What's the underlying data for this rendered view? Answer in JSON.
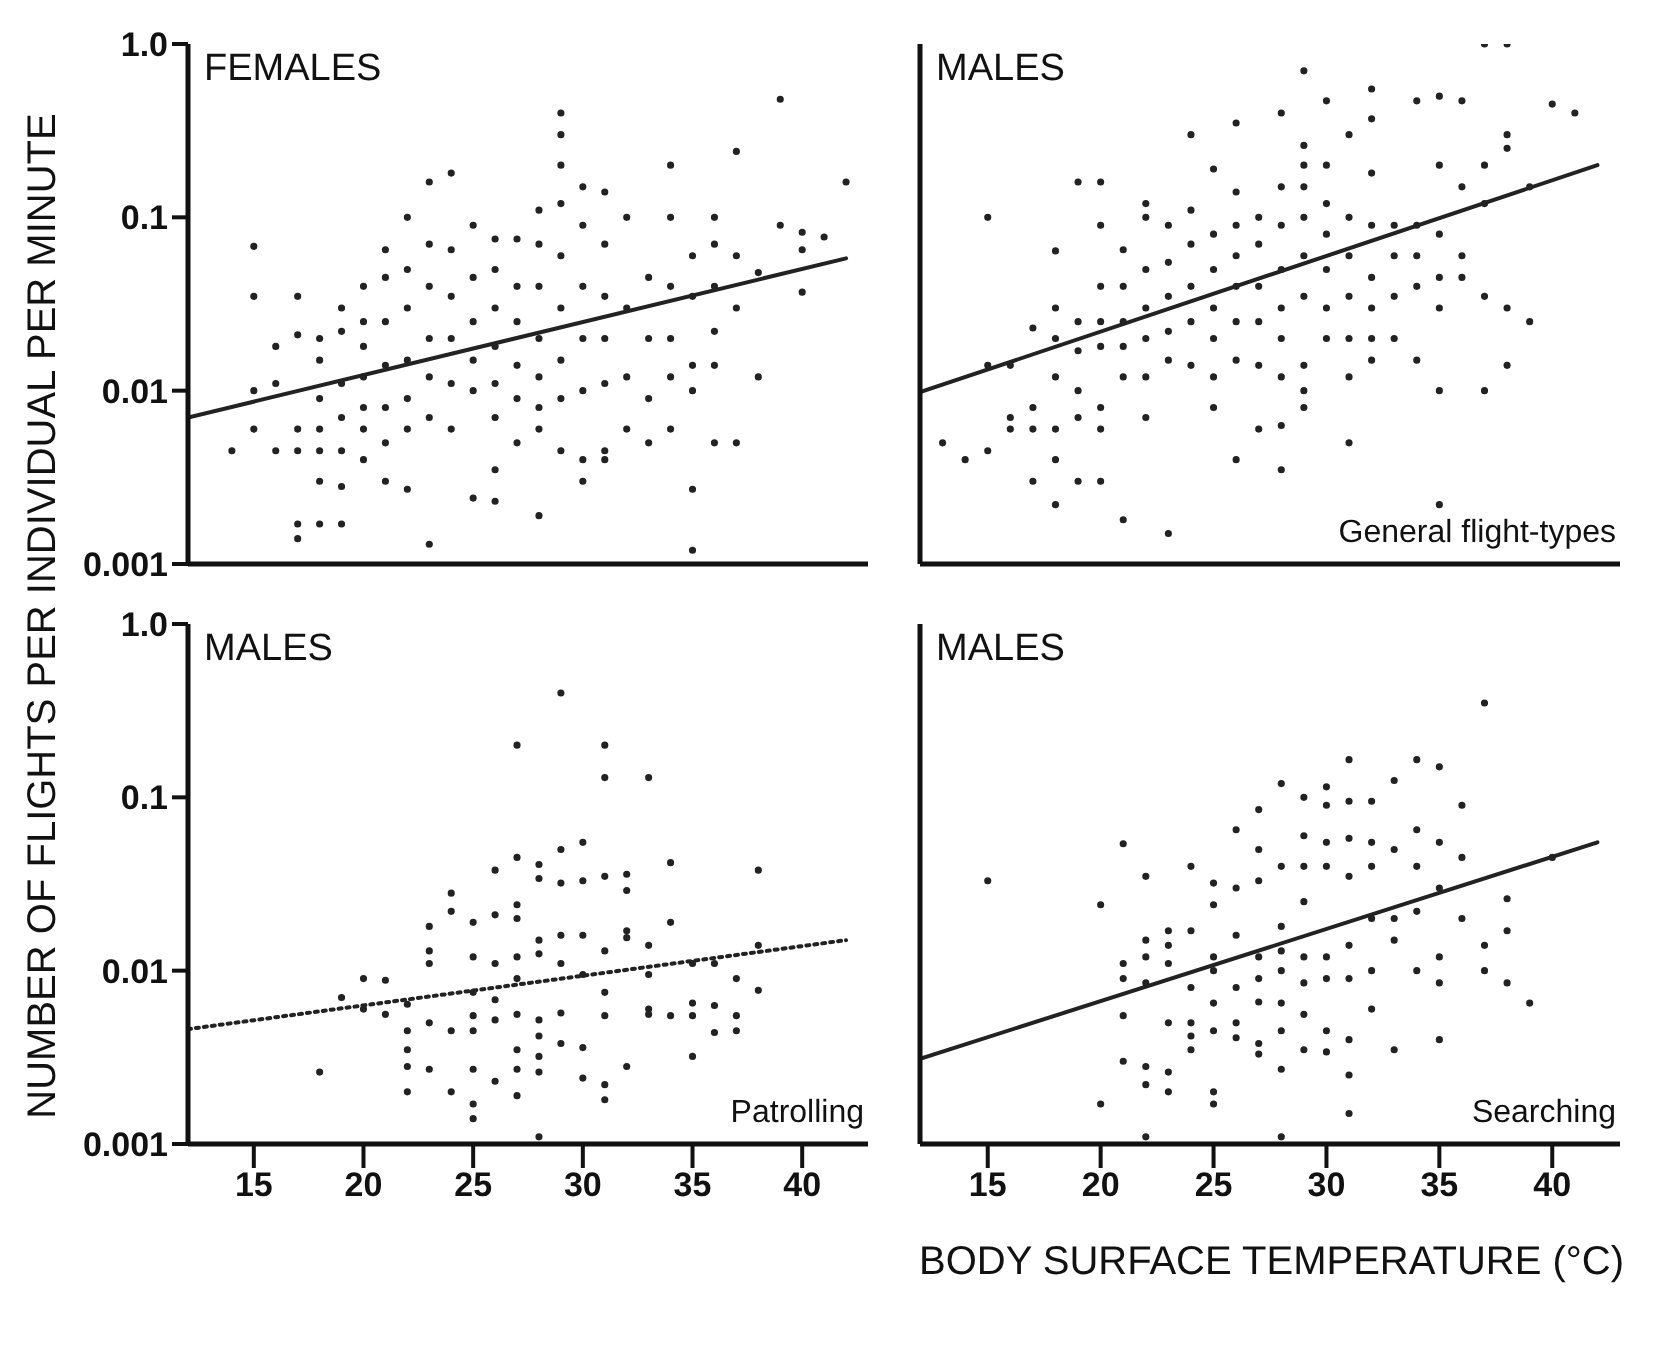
{
  "chart_data": [
    {
      "type": "scatter",
      "title": "FEMALES",
      "ylabel": "NUMBER OF FLIGHTS PER INDIVIDUAL PER MINUTE",
      "xlim": [
        12,
        43
      ],
      "xticks": [
        15,
        20,
        25,
        30,
        35,
        40
      ],
      "ylim": [
        0.001,
        1
      ],
      "yticks": [
        0.001,
        0.01,
        0.1,
        {
          "value": 1,
          "label": "1.0"
        }
      ],
      "log": "y",
      "tick_labels": "y",
      "series": [
        {
          "marker": "circle",
          "color": "#222222",
          "x": [
            14,
            15,
            15,
            15,
            15,
            16,
            16,
            16,
            17,
            17,
            17,
            17,
            17,
            17,
            18,
            18,
            18,
            18,
            18,
            18,
            18,
            19,
            19,
            19,
            19,
            19,
            19,
            19,
            20,
            20,
            20,
            20,
            20,
            20,
            20,
            21,
            21,
            21,
            21,
            21,
            21,
            21,
            22,
            22,
            22,
            22,
            22,
            22,
            22,
            23,
            23,
            23,
            23,
            23,
            23,
            23,
            24,
            24,
            24,
            24,
            24,
            24,
            25,
            25,
            25,
            25,
            25,
            25,
            26,
            26,
            26,
            26,
            26,
            26,
            26,
            26,
            27,
            27,
            27,
            27,
            27,
            27,
            28,
            28,
            28,
            28,
            28,
            28,
            28,
            28,
            29,
            29,
            29,
            29,
            29,
            29,
            29,
            29,
            29,
            30,
            30,
            30,
            30,
            30,
            30,
            30,
            31,
            31,
            31,
            31,
            31,
            31,
            31,
            32,
            32,
            32,
            32,
            33,
            33,
            33,
            33,
            34,
            34,
            34,
            34,
            34,
            34,
            35,
            35,
            35,
            35,
            35,
            35,
            36,
            36,
            36,
            36,
            36,
            36,
            37,
            37,
            37,
            37,
            38,
            38,
            39,
            39,
            40,
            40,
            40,
            41,
            42
          ],
          "values": [
            0.0045,
            0.068,
            0.035,
            0.01,
            0.006,
            0.018,
            0.011,
            0.0045,
            0.035,
            0.021,
            0.006,
            0.0045,
            0.0017,
            0.0014,
            0.02,
            0.015,
            0.009,
            0.006,
            0.0045,
            0.003,
            0.0017,
            0.03,
            0.022,
            0.011,
            0.007,
            0.0045,
            0.0028,
            0.0017,
            0.04,
            0.025,
            0.018,
            0.012,
            0.008,
            0.006,
            0.004,
            0.065,
            0.045,
            0.025,
            0.014,
            0.008,
            0.005,
            0.003,
            0.1,
            0.05,
            0.03,
            0.015,
            0.009,
            0.006,
            0.0027,
            0.16,
            0.07,
            0.04,
            0.02,
            0.012,
            0.007,
            0.0013,
            0.18,
            0.065,
            0.035,
            0.02,
            0.011,
            0.006,
            0.09,
            0.045,
            0.025,
            0.015,
            0.01,
            0.0024,
            0.075,
            0.05,
            0.03,
            0.018,
            0.011,
            0.007,
            0.0035,
            0.0023,
            0.075,
            0.04,
            0.025,
            0.014,
            0.009,
            0.005,
            0.11,
            0.07,
            0.04,
            0.02,
            0.012,
            0.008,
            0.006,
            0.0019,
            0.4,
            0.3,
            0.2,
            0.12,
            0.06,
            0.03,
            0.015,
            0.009,
            0.0045,
            0.15,
            0.09,
            0.04,
            0.02,
            0.01,
            0.004,
            0.003,
            0.14,
            0.07,
            0.035,
            0.02,
            0.011,
            0.0045,
            0.004,
            0.1,
            0.03,
            0.012,
            0.006,
            0.045,
            0.02,
            0.009,
            0.005,
            0.2,
            0.1,
            0.04,
            0.02,
            0.012,
            0.006,
            0.06,
            0.035,
            0.014,
            0.01,
            0.0027,
            0.0012,
            0.1,
            0.07,
            0.04,
            0.022,
            0.014,
            0.005,
            0.24,
            0.06,
            0.03,
            0.005,
            0.048,
            0.012,
            0.48,
            0.09,
            0.082,
            0.065,
            0.037,
            0.077,
            0.16
          ]
        },
        {
          "type": "line",
          "marker": "none",
          "color": "#222222",
          "line_style": "solid",
          "x": [
            12,
            42
          ],
          "values": [
            0.007,
            0.058
          ]
        }
      ]
    },
    {
      "type": "scatter",
      "title": "MALES",
      "subtitle": "General flight-types",
      "xlim": [
        12,
        43
      ],
      "xticks": [
        15,
        20,
        25,
        30,
        35,
        40
      ],
      "ylim": [
        0.001,
        1
      ],
      "yticks": [
        0.001,
        0.01,
        0.1,
        1
      ],
      "log": "y",
      "tick_labels": false,
      "series": [
        {
          "marker": "circle",
          "color": "#222222",
          "x": [
            13,
            14,
            15,
            15,
            15,
            16,
            16,
            16,
            17,
            17,
            17,
            17,
            18,
            18,
            18,
            18,
            18,
            18,
            18,
            19,
            19,
            19,
            19,
            19,
            19,
            20,
            20,
            20,
            20,
            20,
            20,
            20,
            20,
            21,
            21,
            21,
            21,
            21,
            21,
            22,
            22,
            22,
            22,
            22,
            22,
            22,
            23,
            23,
            23,
            23,
            23,
            23,
            24,
            24,
            24,
            24,
            24,
            24,
            25,
            25,
            25,
            25,
            25,
            25,
            25,
            26,
            26,
            26,
            26,
            26,
            26,
            26,
            26,
            27,
            27,
            27,
            27,
            27,
            27,
            28,
            28,
            28,
            28,
            28,
            28,
            28,
            28,
            28,
            29,
            29,
            29,
            29,
            29,
            29,
            29,
            29,
            29,
            29,
            30,
            30,
            30,
            30,
            30,
            30,
            30,
            31,
            31,
            31,
            31,
            31,
            31,
            31,
            32,
            32,
            32,
            32,
            32,
            32,
            32,
            32,
            33,
            33,
            33,
            33,
            34,
            34,
            34,
            34,
            34,
            35,
            35,
            35,
            35,
            35,
            35,
            35,
            36,
            36,
            36,
            36,
            37,
            37,
            37,
            37,
            37,
            38,
            38,
            38,
            38,
            38,
            39,
            39,
            40,
            41
          ],
          "values": [
            0.005,
            0.004,
            0.1,
            0.014,
            0.0045,
            0.014,
            0.007,
            0.006,
            0.023,
            0.008,
            0.006,
            0.003,
            0.064,
            0.03,
            0.02,
            0.012,
            0.006,
            0.004,
            0.0022,
            0.16,
            0.025,
            0.017,
            0.01,
            0.007,
            0.003,
            0.16,
            0.09,
            0.04,
            0.025,
            0.018,
            0.008,
            0.006,
            0.003,
            0.065,
            0.04,
            0.025,
            0.018,
            0.012,
            0.0018,
            0.12,
            0.1,
            0.05,
            0.03,
            0.02,
            0.012,
            0.007,
            0.09,
            0.055,
            0.035,
            0.022,
            0.015,
            0.0015,
            0.3,
            0.11,
            0.07,
            0.04,
            0.025,
            0.014,
            0.19,
            0.08,
            0.05,
            0.03,
            0.02,
            0.012,
            0.008,
            0.35,
            0.14,
            0.09,
            0.06,
            0.04,
            0.025,
            0.015,
            0.004,
            0.1,
            0.07,
            0.04,
            0.025,
            0.014,
            0.006,
            0.4,
            0.15,
            0.09,
            0.05,
            0.03,
            0.02,
            0.012,
            0.0063,
            0.0035,
            0.7,
            0.26,
            0.2,
            0.15,
            0.1,
            0.06,
            0.035,
            0.014,
            0.01,
            0.008,
            0.47,
            0.2,
            0.12,
            0.08,
            0.05,
            0.03,
            0.02,
            0.3,
            0.1,
            0.06,
            0.035,
            0.02,
            0.012,
            0.005,
            0.55,
            0.37,
            0.18,
            0.09,
            0.045,
            0.03,
            0.02,
            0.015,
            0.09,
            0.06,
            0.035,
            0.02,
            0.47,
            0.09,
            0.06,
            0.04,
            0.015,
            0.5,
            0.2,
            0.08,
            0.045,
            0.03,
            0.01,
            0.0022,
            0.47,
            0.15,
            0.06,
            0.045,
            1.0,
            0.2,
            0.12,
            0.035,
            0.01,
            1.0,
            0.3,
            0.25,
            0.03,
            0.014,
            0.15,
            0.025,
            0.45,
            0.4
          ]
        },
        {
          "type": "line",
          "marker": "none",
          "color": "#222222",
          "line_style": "solid",
          "x": [
            12,
            42
          ],
          "values": [
            0.0098,
            0.2
          ]
        }
      ]
    },
    {
      "type": "scatter",
      "title": "MALES",
      "subtitle": "Patrolling",
      "xlim": [
        12,
        43
      ],
      "xticks": [
        15,
        20,
        25,
        30,
        35,
        40
      ],
      "ylim": [
        0.001,
        1
      ],
      "yticks": [
        0.001,
        0.01,
        0.1,
        {
          "value": 1,
          "label": "1.0"
        }
      ],
      "log": "y",
      "series": [
        {
          "marker": "circle",
          "color": "#222222",
          "x": [
            18,
            19,
            20,
            20,
            21,
            21,
            22,
            22,
            22,
            22,
            22,
            23,
            23,
            23,
            23,
            23,
            24,
            24,
            24,
            24,
            25,
            25,
            25,
            25,
            25,
            25,
            25,
            25,
            26,
            26,
            26,
            26,
            26,
            26,
            27,
            27,
            27,
            27,
            27,
            27,
            27,
            27,
            27,
            27,
            28,
            28,
            28,
            28,
            28,
            28,
            28,
            28,
            28,
            29,
            29,
            29,
            29,
            29,
            29,
            29,
            30,
            30,
            30,
            30,
            30,
            30,
            31,
            31,
            31,
            31,
            31,
            31,
            31,
            31,
            32,
            32,
            32,
            32,
            32,
            33,
            33,
            33,
            33,
            33,
            34,
            34,
            34,
            35,
            35,
            35,
            35,
            36,
            36,
            36,
            37,
            37,
            37,
            38,
            38,
            38
          ],
          "values": [
            0.0026,
            0.007,
            0.009,
            0.006,
            0.0088,
            0.0056,
            0.0064,
            0.0045,
            0.0035,
            0.0028,
            0.002,
            0.018,
            0.013,
            0.011,
            0.005,
            0.0027,
            0.028,
            0.022,
            0.0045,
            0.002,
            0.019,
            0.012,
            0.0075,
            0.0055,
            0.0045,
            0.0027,
            0.0017,
            0.0014,
            0.038,
            0.021,
            0.011,
            0.0068,
            0.0052,
            0.0023,
            0.2,
            0.045,
            0.024,
            0.02,
            0.012,
            0.009,
            0.0056,
            0.0035,
            0.0027,
            0.0019,
            0.041,
            0.034,
            0.015,
            0.0125,
            0.0052,
            0.0042,
            0.0032,
            0.0026,
            0.0011,
            0.4,
            0.05,
            0.032,
            0.016,
            0.011,
            0.0057,
            0.0038,
            0.055,
            0.033,
            0.016,
            0.0095,
            0.0036,
            0.0024,
            0.2,
            0.13,
            0.035,
            0.013,
            0.0075,
            0.0055,
            0.0022,
            0.0018,
            0.036,
            0.029,
            0.017,
            0.0155,
            0.0028,
            0.13,
            0.014,
            0.0095,
            0.006,
            0.0056,
            0.042,
            0.019,
            0.0055,
            0.011,
            0.0065,
            0.0055,
            0.0032,
            0.011,
            0.0063,
            0.0044,
            0.009,
            0.0055,
            0.0045,
            0.038,
            0.014,
            0.0077
          ]
        },
        {
          "type": "line",
          "marker": "none",
          "color": "#222222",
          "line_style": "dotted",
          "x": [
            12,
            42
          ],
          "values": [
            0.0046,
            0.015
          ]
        }
      ]
    },
    {
      "type": "scatter",
      "title": "MALES",
      "subtitle": "Searching",
      "xlabel": "BODY SURFACE TEMPERATURE (°C)",
      "xlim": [
        12,
        43
      ],
      "xticks": [
        15,
        20,
        25,
        30,
        35,
        40
      ],
      "ylim": [
        0.001,
        1
      ],
      "yticks": [
        0.001,
        0.01,
        0.1,
        1
      ],
      "log": "y",
      "tick_labels": "x",
      "series": [
        {
          "marker": "circle",
          "color": "#222222",
          "x": [
            15,
            20,
            20,
            21,
            21,
            21,
            21,
            21,
            22,
            22,
            22,
            22,
            22,
            22,
            22,
            23,
            23,
            23,
            23,
            23,
            23,
            24,
            24,
            24,
            24,
            24,
            24,
            25,
            25,
            25,
            25,
            25,
            25,
            25,
            25,
            26,
            26,
            26,
            26,
            26,
            26,
            27,
            27,
            27,
            27,
            27,
            27,
            27,
            27,
            28,
            28,
            28,
            28,
            28,
            28,
            28,
            28,
            28,
            29,
            29,
            29,
            29,
            29,
            29,
            29,
            29,
            30,
            30,
            30,
            30,
            30,
            30,
            30,
            30,
            31,
            31,
            31,
            31,
            31,
            31,
            31,
            31,
            31,
            32,
            32,
            32,
            32,
            32,
            32,
            33,
            33,
            33,
            33,
            33,
            34,
            34,
            34,
            34,
            34,
            35,
            35,
            35,
            35,
            35,
            35,
            36,
            36,
            36,
            37,
            37,
            37,
            38,
            38,
            38,
            39,
            40
          ],
          "values": [
            0.033,
            0.024,
            0.0017,
            0.054,
            0.011,
            0.009,
            0.0055,
            0.003,
            0.035,
            0.015,
            0.012,
            0.0085,
            0.0028,
            0.0022,
            0.0011,
            0.017,
            0.014,
            0.011,
            0.005,
            0.0026,
            0.002,
            0.04,
            0.017,
            0.008,
            0.005,
            0.0042,
            0.0035,
            0.032,
            0.024,
            0.012,
            0.01,
            0.0065,
            0.0045,
            0.002,
            0.0017,
            0.065,
            0.03,
            0.016,
            0.008,
            0.005,
            0.0041,
            0.085,
            0.05,
            0.033,
            0.012,
            0.009,
            0.0066,
            0.0038,
            0.0033,
            0.12,
            0.04,
            0.018,
            0.013,
            0.01,
            0.0065,
            0.0045,
            0.0027,
            0.0011,
            0.1,
            0.06,
            0.04,
            0.025,
            0.012,
            0.0085,
            0.0056,
            0.0035,
            0.115,
            0.09,
            0.055,
            0.04,
            0.012,
            0.009,
            0.0045,
            0.0034,
            0.165,
            0.095,
            0.058,
            0.035,
            0.014,
            0.009,
            0.004,
            0.0025,
            0.0015,
            0.095,
            0.055,
            0.04,
            0.02,
            0.01,
            0.006,
            0.125,
            0.05,
            0.02,
            0.015,
            0.0035,
            0.165,
            0.065,
            0.04,
            0.022,
            0.01,
            0.15,
            0.055,
            0.03,
            0.012,
            0.0085,
            0.004,
            0.09,
            0.045,
            0.02,
            0.35,
            0.014,
            0.01,
            0.026,
            0.017,
            0.0085,
            0.0065,
            0.045
          ]
        },
        {
          "type": "line",
          "marker": "none",
          "color": "#222222",
          "line_style": "solid",
          "x": [
            12,
            42
          ],
          "values": [
            0.0031,
            0.055
          ]
        }
      ]
    }
  ]
}
